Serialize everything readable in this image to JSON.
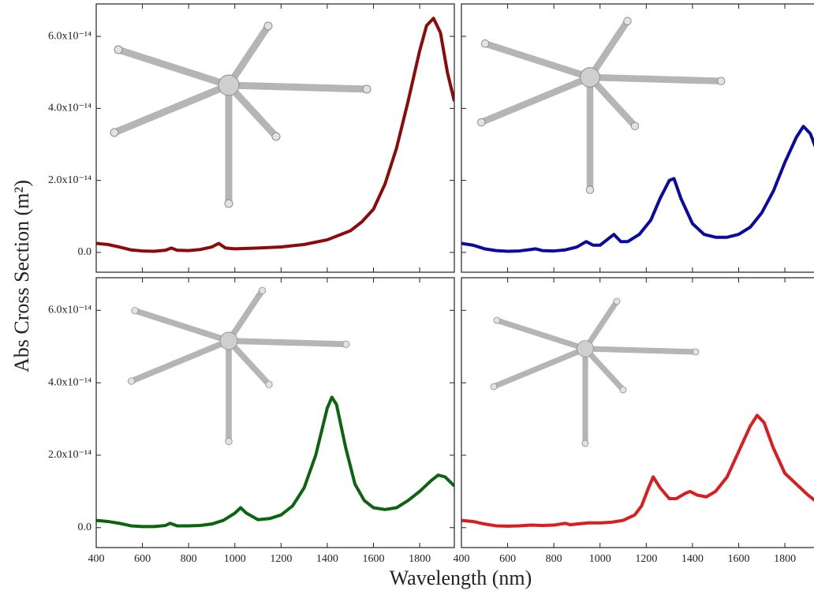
{
  "xlabel": "Wavelength (nm)",
  "ylabel": "Abs Cross Section (m²)",
  "xlim": [
    400,
    1950
  ],
  "xticks": [
    400,
    600,
    800,
    1000,
    1200,
    1400,
    1600,
    1800
  ],
  "ylim": [
    -5.5e-15,
    6.9e-14
  ],
  "yticks": [
    {
      "value": 0,
      "label": "0.0"
    },
    {
      "value": 2e-14,
      "label": "2.0x10⁻¹⁴"
    },
    {
      "value": 4e-14,
      "label": "4.0x10⁻¹⁴"
    },
    {
      "value": 6e-14,
      "label": "6.0x10⁻¹⁴"
    }
  ],
  "chart_data": [
    {
      "type": "line",
      "color": "#8b0a0a",
      "x": [
        400,
        450,
        500,
        550,
        600,
        650,
        700,
        725,
        750,
        800,
        850,
        900,
        930,
        960,
        1000,
        1100,
        1200,
        1300,
        1400,
        1500,
        1550,
        1600,
        1650,
        1700,
        1750,
        1800,
        1830,
        1860,
        1890,
        1920,
        1950
      ],
      "values": [
        2.5e-15,
        2.2e-15,
        1.5e-15,
        7e-16,
        4e-16,
        3e-16,
        6e-16,
        1.2e-15,
        6e-16,
        5e-16,
        8e-16,
        1.5e-15,
        2.5e-15,
        1.2e-15,
        1e-15,
        1.2e-15,
        1.5e-15,
        2.2e-15,
        3.5e-15,
        6e-15,
        8.5e-15,
        1.2e-14,
        1.9e-14,
        2.9e-14,
        4.2e-14,
        5.6e-14,
        6.3e-14,
        6.5e-14,
        6.1e-14,
        5e-14,
        4.2e-14
      ]
    },
    {
      "type": "line",
      "color": "#0a0aa0",
      "x": [
        400,
        450,
        500,
        550,
        600,
        650,
        700,
        720,
        750,
        800,
        850,
        900,
        940,
        970,
        1000,
        1030,
        1060,
        1090,
        1120,
        1170,
        1220,
        1260,
        1300,
        1320,
        1350,
        1400,
        1450,
        1500,
        1550,
        1600,
        1650,
        1700,
        1750,
        1800,
        1850,
        1880,
        1910,
        1940,
        1950
      ],
      "values": [
        2.5e-15,
        2e-15,
        1e-15,
        5e-16,
        3e-16,
        4e-16,
        8e-16,
        1e-15,
        5e-16,
        4e-16,
        7e-16,
        1.5e-15,
        3e-15,
        2e-15,
        2e-15,
        3.5e-15,
        5e-15,
        3e-15,
        3e-15,
        5e-15,
        9e-15,
        1.5e-14,
        2e-14,
        2.05e-14,
        1.5e-14,
        8e-15,
        5e-15,
        4.2e-15,
        4.2e-15,
        5e-15,
        7e-15,
        1.1e-14,
        1.7e-14,
        2.5e-14,
        3.2e-14,
        3.5e-14,
        3.3e-14,
        2.8e-14,
        2.7e-14
      ]
    },
    {
      "type": "line",
      "color": "#0d6410",
      "x": [
        400,
        450,
        500,
        550,
        600,
        650,
        700,
        720,
        750,
        800,
        850,
        900,
        950,
        1000,
        1025,
        1050,
        1100,
        1150,
        1200,
        1250,
        1300,
        1350,
        1400,
        1420,
        1440,
        1480,
        1520,
        1560,
        1600,
        1650,
        1700,
        1750,
        1800,
        1850,
        1880,
        1910,
        1950
      ],
      "values": [
        2e-15,
        1.7e-15,
        1.2e-15,
        5e-16,
        3e-16,
        3e-16,
        6e-16,
        1.2e-15,
        5e-16,
        5e-16,
        6e-16,
        1e-15,
        2e-15,
        4e-15,
        5.5e-15,
        4e-15,
        2.2e-15,
        2.5e-15,
        3.5e-15,
        6e-15,
        1.1e-14,
        2e-14,
        3.3e-14,
        3.6e-14,
        3.4e-14,
        2.2e-14,
        1.2e-14,
        7.5e-15,
        5.5e-15,
        5e-15,
        5.5e-15,
        7.5e-15,
        1e-14,
        1.3e-14,
        1.45e-14,
        1.4e-14,
        1.15e-14
      ]
    },
    {
      "type": "line",
      "color": "#d81e1e",
      "x": [
        400,
        450,
        500,
        550,
        600,
        650,
        700,
        750,
        800,
        850,
        870,
        900,
        950,
        1000,
        1050,
        1100,
        1150,
        1180,
        1210,
        1230,
        1260,
        1300,
        1330,
        1370,
        1390,
        1420,
        1460,
        1500,
        1550,
        1600,
        1650,
        1680,
        1710,
        1750,
        1800,
        1850,
        1900,
        1950
      ],
      "values": [
        2e-15,
        1.7e-15,
        1e-15,
        5e-16,
        4e-16,
        5e-16,
        7e-16,
        6e-16,
        7e-16,
        1.2e-15,
        8e-16,
        1e-15,
        1.3e-15,
        1.3e-15,
        1.5e-15,
        2e-15,
        3.5e-15,
        6e-15,
        1.1e-14,
        1.4e-14,
        1.1e-14,
        8e-15,
        8e-15,
        9.5e-15,
        1e-14,
        9e-15,
        8.5e-15,
        1e-14,
        1.4e-14,
        2.1e-14,
        2.8e-14,
        3.1e-14,
        2.9e-14,
        2.2e-14,
        1.5e-14,
        1.2e-14,
        9e-15,
        6.5e-15
      ]
    }
  ]
}
